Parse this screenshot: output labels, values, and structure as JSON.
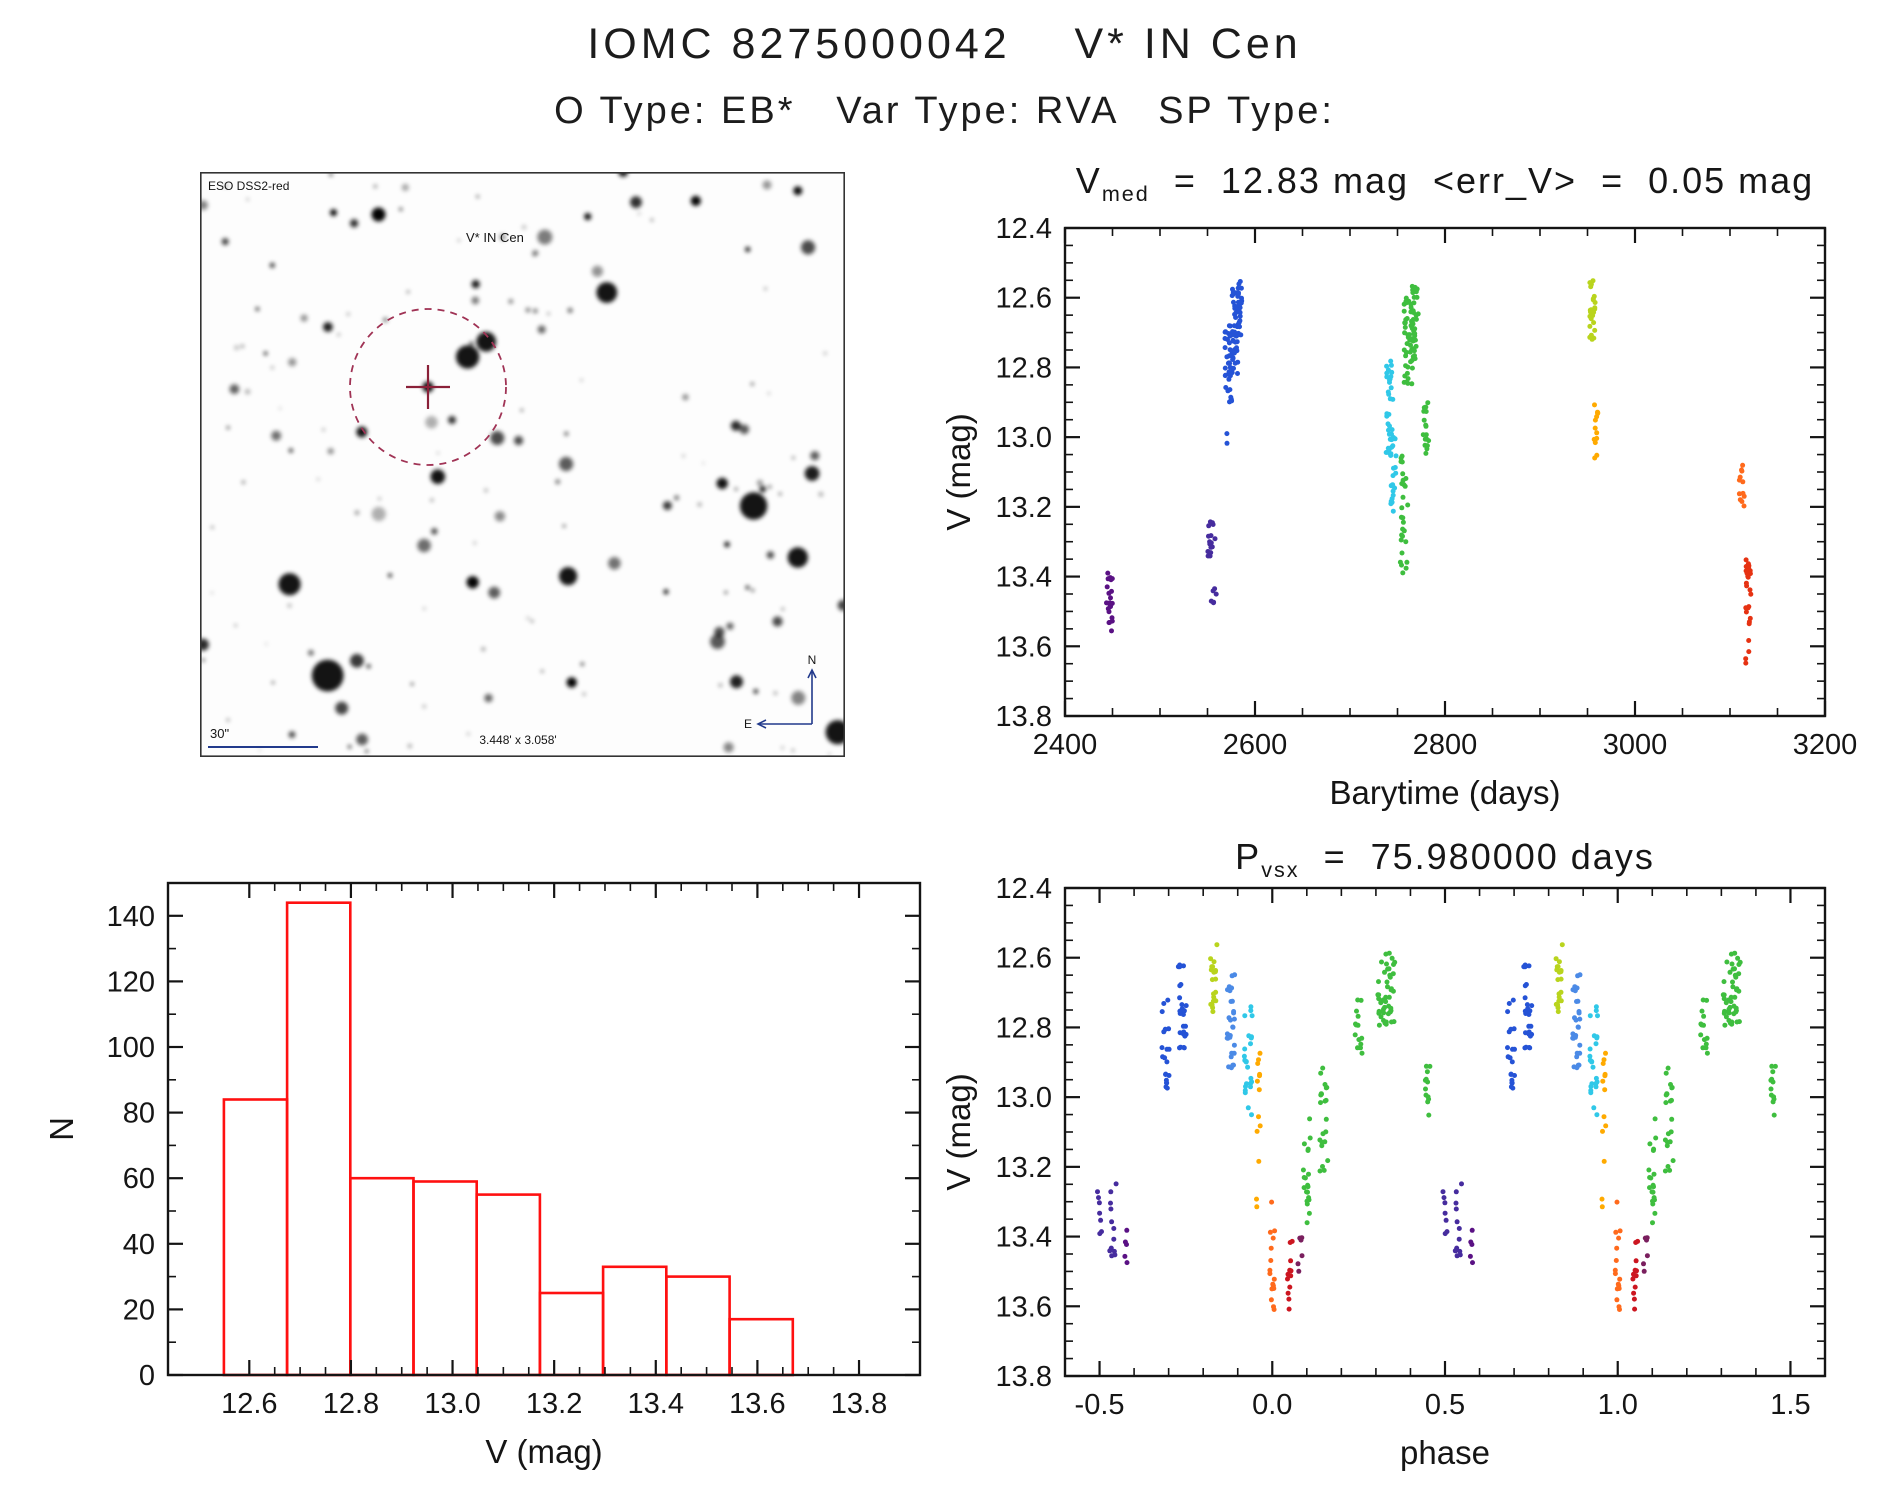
{
  "page": {
    "background": "#ffffff"
  },
  "header": {
    "title": "IOMC 8275000042    V* IN Cen",
    "subtitle": "O Type: EB*   Var Type: RVA   SP Type:"
  },
  "finder": {
    "survey_label": "ESO DSS2-red",
    "target_label": "V* IN Cen",
    "scale_label": "30\"",
    "fov_label": "3.448' x 3.058'",
    "compass_north": "N",
    "compass_east": "E",
    "accent_blue": "#223a8c",
    "accent_red": "#a03355"
  },
  "chart_data": [
    {
      "id": "lightcurve",
      "type": "scatter",
      "title": {
        "prefix": "V",
        "sub": "med",
        "rest": "  =  12.83 mag  <err_V>  =  0.05 mag"
      },
      "xlabel": "Barytime (days)",
      "ylabel": "V (mag)",
      "xlim": [
        2400,
        3200
      ],
      "ylim": [
        13.8,
        12.4
      ],
      "xtick_vals": [
        2400,
        2600,
        2800,
        3000,
        3200
      ],
      "xtick_labels": [
        "2400",
        "2600",
        "2800",
        "3000",
        "3200"
      ],
      "ytick_vals": [
        12.4,
        12.6,
        12.8,
        13.0,
        13.2,
        13.4,
        13.6,
        13.8
      ],
      "ytick_labels": [
        "12.4",
        "12.6",
        "12.8",
        "13.0",
        "13.2",
        "13.4",
        "13.6",
        "13.8"
      ],
      "xminor": 4,
      "yminor": 4,
      "seed": 11,
      "clusters": [
        {
          "x": 2447,
          "dx": 4,
          "y": [
            13.38,
            13.56
          ],
          "n": 22,
          "color": "#5a1184"
        },
        {
          "x": 2554,
          "dx": 4,
          "y": [
            13.24,
            13.36
          ],
          "n": 16,
          "color": "#462c9e"
        },
        {
          "x": 2557,
          "dx": 3,
          "y": [
            13.4,
            13.48
          ],
          "n": 6,
          "color": "#462c9e"
        },
        {
          "x": 2572,
          "dx": 4,
          "y": [
            12.68,
            12.9
          ],
          "n": 34,
          "color": "#2553d6"
        },
        {
          "x": 2579,
          "dx": 3,
          "y": [
            12.56,
            12.82
          ],
          "n": 40,
          "color": "#2553d6"
        },
        {
          "x": 2584,
          "dx": 2,
          "y": [
            12.55,
            12.72
          ],
          "n": 24,
          "color": "#2553d6"
        },
        {
          "x": 2570,
          "dx": 1,
          "y": [
            12.95,
            13.02
          ],
          "n": 2,
          "color": "#2553d6"
        },
        {
          "x": 2742,
          "dx": 4,
          "y": [
            12.78,
            13.06
          ],
          "n": 34,
          "color": "#30c8e8"
        },
        {
          "x": 2746,
          "dx": 3,
          "y": [
            13.0,
            13.22
          ],
          "n": 24,
          "color": "#30c8e8"
        },
        {
          "x": 2757,
          "dx": 4,
          "y": [
            13.05,
            13.4
          ],
          "n": 28,
          "color": "#3fbe3f"
        },
        {
          "x": 2762,
          "dx": 5,
          "y": [
            12.6,
            12.86
          ],
          "n": 44,
          "color": "#3fbe3f"
        },
        {
          "x": 2768,
          "dx": 4,
          "y": [
            12.55,
            12.78
          ],
          "n": 34,
          "color": "#3fbe3f"
        },
        {
          "x": 2780,
          "dx": 3,
          "y": [
            12.9,
            13.06
          ],
          "n": 18,
          "color": "#3fbe3f"
        },
        {
          "x": 2955,
          "dx": 3,
          "y": [
            12.53,
            12.72
          ],
          "n": 24,
          "color": "#b9d41d"
        },
        {
          "x": 2959,
          "dx": 2,
          "y": [
            12.9,
            13.06
          ],
          "n": 14,
          "color": "#ffaa00"
        },
        {
          "x": 3112,
          "dx": 3,
          "y": [
            13.08,
            13.2
          ],
          "n": 12,
          "color": "#ff6a1c"
        },
        {
          "x": 3119,
          "dx": 3,
          "y": [
            13.35,
            13.65
          ],
          "n": 26,
          "color": "#e63212"
        }
      ]
    },
    {
      "id": "histogram",
      "type": "histogram",
      "xlabel": "V (mag)",
      "ylabel": "N",
      "xlim": [
        12.44,
        13.92
      ],
      "ylim": [
        0,
        150
      ],
      "xtick_vals": [
        12.6,
        12.8,
        13.0,
        13.2,
        13.4,
        13.6,
        13.8
      ],
      "xtick_labels": [
        "12.6",
        "12.8",
        "13.0",
        "13.2",
        "13.4",
        "13.6",
        "13.8"
      ],
      "ytick_vals": [
        0,
        20,
        40,
        60,
        80,
        100,
        120,
        140
      ],
      "ytick_labels": [
        "0",
        "20",
        "40",
        "60",
        "80",
        "100",
        "120",
        "140"
      ],
      "xminor": 4,
      "yminor": 2,
      "bin_start": 12.55,
      "bin_width": 0.1244,
      "values": [
        84,
        144,
        60,
        59,
        55,
        25,
        33,
        30,
        17
      ],
      "bar_color": "#ff1010"
    },
    {
      "id": "phase",
      "type": "scatter",
      "title": {
        "prefix": "P",
        "sub": "vsx",
        "rest": "  =  75.980000 days"
      },
      "xlabel": "phase",
      "ylabel": "V (mag)",
      "xlim": [
        -0.6,
        1.6
      ],
      "ylim": [
        13.8,
        12.4
      ],
      "xtick_vals": [
        -0.5,
        0,
        0.5,
        1,
        1.5
      ],
      "xtick_labels": [
        "-0.5",
        "0.0",
        "0.5",
        "1.0",
        "1.5"
      ],
      "ytick_vals": [
        12.4,
        12.6,
        12.8,
        13.0,
        13.2,
        13.4,
        13.6,
        13.8
      ],
      "ytick_labels": [
        "12.4",
        "12.6",
        "12.8",
        "13.0",
        "13.2",
        "13.4",
        "13.6",
        "13.8"
      ],
      "xminor": 5,
      "yminor": 4,
      "repeat": 1,
      "seed": 7,
      "clusters": [
        {
          "x": -0.5,
          "dx": 0.006,
          "y": [
            13.26,
            13.44
          ],
          "n": 7,
          "color": "#462c9e"
        },
        {
          "x": -0.46,
          "dx": 0.012,
          "y": [
            13.24,
            13.46
          ],
          "n": 12,
          "color": "#462c9e"
        },
        {
          "x": -0.42,
          "dx": 0.008,
          "y": [
            13.38,
            13.48
          ],
          "n": 5,
          "color": "#5a1184"
        },
        {
          "x": -0.31,
          "dx": 0.012,
          "y": [
            12.72,
            12.98
          ],
          "n": 20,
          "color": "#2553d6"
        },
        {
          "x": -0.26,
          "dx": 0.012,
          "y": [
            12.62,
            12.86
          ],
          "n": 26,
          "color": "#2553d6"
        },
        {
          "x": -0.17,
          "dx": 0.01,
          "y": [
            12.55,
            12.76
          ],
          "n": 20,
          "color": "#b9d41d"
        },
        {
          "x": -0.12,
          "dx": 0.012,
          "y": [
            12.6,
            12.92
          ],
          "n": 28,
          "color": "#4b8ae6"
        },
        {
          "x": -0.07,
          "dx": 0.012,
          "y": [
            12.74,
            13.06
          ],
          "n": 24,
          "color": "#30c8e8"
        },
        {
          "x": -0.04,
          "dx": 0.006,
          "y": [
            12.86,
            13.32
          ],
          "n": 13,
          "color": "#ffaa00"
        },
        {
          "x": 0.0,
          "dx": 0.008,
          "y": [
            13.28,
            13.66
          ],
          "n": 16,
          "color": "#ff6a1c"
        },
        {
          "x": 0.05,
          "dx": 0.008,
          "y": [
            13.4,
            13.62
          ],
          "n": 12,
          "color": "#cc1620"
        },
        {
          "x": 0.08,
          "dx": 0.006,
          "y": [
            13.38,
            13.52
          ],
          "n": 6,
          "color": "#7a1f5e"
        },
        {
          "x": 0.1,
          "dx": 0.01,
          "y": [
            13.05,
            13.38
          ],
          "n": 20,
          "color": "#3fbe3f"
        },
        {
          "x": 0.15,
          "dx": 0.012,
          "y": [
            12.88,
            13.22
          ],
          "n": 22,
          "color": "#3fbe3f"
        },
        {
          "x": 0.25,
          "dx": 0.01,
          "y": [
            12.72,
            12.88
          ],
          "n": 14,
          "color": "#3fbe3f"
        },
        {
          "x": 0.33,
          "dx": 0.025,
          "y": [
            12.58,
            12.8
          ],
          "n": 46,
          "color": "#3fbe3f"
        },
        {
          "x": 0.45,
          "dx": 0.008,
          "y": [
            12.9,
            13.06
          ],
          "n": 12,
          "color": "#3fbe3f"
        }
      ]
    }
  ]
}
